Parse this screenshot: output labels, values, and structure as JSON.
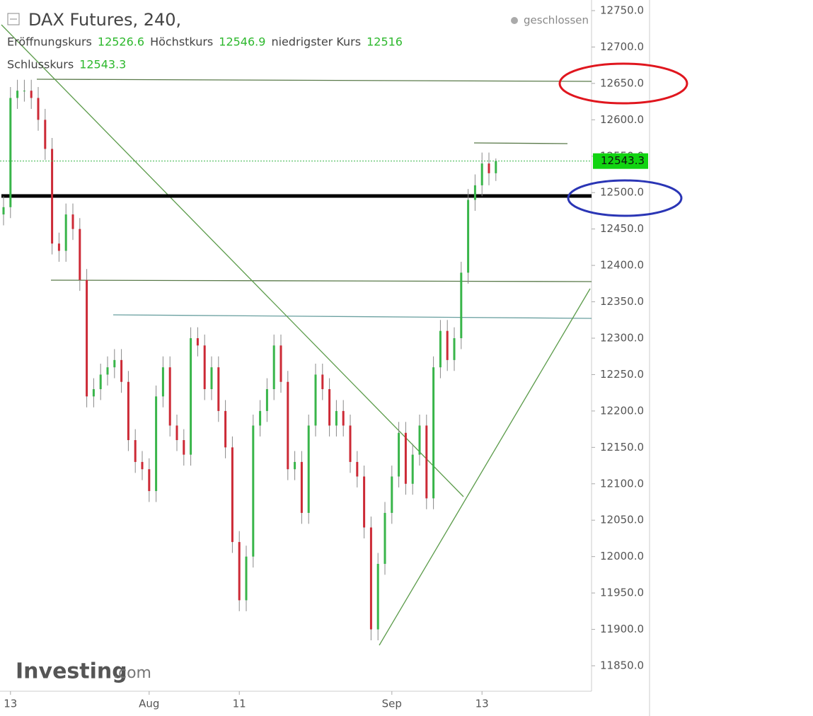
{
  "chart_data": {
    "type": "candlestick",
    "title": "DAX Futures, 240,",
    "status": "geschlossen",
    "ohlc_labels": [
      "Eröffnungskurs",
      "Höchstkurs",
      "niedrigster Kurs",
      "Schlusskurs"
    ],
    "logo": "Investing",
    "logo_suffix": ".com",
    "up_color": "#39b54a",
    "down_color": "#cc2a36",
    "categories": [
      null,
      "13",
      null,
      null,
      null,
      null,
      null,
      null,
      null,
      null,
      null,
      null,
      null,
      null,
      null,
      null,
      null,
      null,
      null,
      null,
      null,
      "Aug",
      null,
      null,
      null,
      null,
      null,
      null,
      null,
      null,
      null,
      null,
      null,
      null,
      "11",
      null,
      null,
      null,
      null,
      null,
      null,
      null,
      null,
      null,
      null,
      null,
      null,
      null,
      null,
      null,
      null,
      null,
      null,
      null,
      null,
      null,
      "Sep",
      null,
      null,
      null,
      null,
      null,
      null,
      null,
      null,
      null,
      null,
      null,
      null,
      "13",
      null,
      null
    ],
    "open": [
      12470,
      12480,
      12630,
      12640,
      12640,
      12630,
      12600,
      12560,
      12430,
      12420,
      12470,
      12450,
      12380,
      12220,
      12230,
      12250,
      12260,
      12270,
      12240,
      12160,
      12130,
      12120,
      12090,
      12220,
      12260,
      12180,
      12160,
      12140,
      12300,
      12290,
      12230,
      12260,
      12200,
      12150,
      12020,
      11940,
      12000,
      12180,
      12200,
      12230,
      12290,
      12240,
      12120,
      12130,
      12060,
      12180,
      12250,
      12230,
      12180,
      12200,
      12180,
      12130,
      12110,
      12040,
      11900,
      11990,
      12060,
      12110,
      12170,
      12100,
      12140,
      12180,
      12080,
      12260,
      12310,
      12270,
      12300,
      12390,
      12490,
      12510,
      12540,
      12526.6
    ],
    "high": [
      12495,
      12645,
      12655,
      12655,
      12655,
      12645,
      12615,
      12575,
      12445,
      12485,
      12485,
      12465,
      12395,
      12245,
      12265,
      12275,
      12285,
      12285,
      12255,
      12175,
      12145,
      12135,
      12235,
      12275,
      12275,
      12195,
      12175,
      12315,
      12315,
      12305,
      12275,
      12275,
      12215,
      12165,
      12035,
      12015,
      12195,
      12215,
      12245,
      12305,
      12305,
      12255,
      12145,
      12145,
      12195,
      12265,
      12265,
      12245,
      12215,
      12215,
      12195,
      12145,
      12125,
      12055,
      12005,
      12075,
      12125,
      12185,
      12185,
      12155,
      12195,
      12195,
      12275,
      12325,
      12325,
      12315,
      12405,
      12505,
      12525,
      12555,
      12555,
      12546.9
    ],
    "low": [
      12455,
      12465,
      12615,
      12625,
      12615,
      12585,
      12545,
      12415,
      12405,
      12405,
      12435,
      12365,
      12205,
      12205,
      12215,
      12235,
      12245,
      12225,
      12145,
      12115,
      12105,
      12075,
      12075,
      12205,
      12165,
      12145,
      12125,
      12125,
      12275,
      12215,
      12215,
      12185,
      12135,
      12005,
      11925,
      11925,
      11985,
      12165,
      12185,
      12215,
      12225,
      12105,
      12105,
      12045,
      12045,
      12165,
      12215,
      12165,
      12165,
      12165,
      12115,
      12095,
      12025,
      11885,
      11885,
      11975,
      12045,
      12095,
      12085,
      12085,
      12125,
      12065,
      12065,
      12245,
      12255,
      12255,
      12285,
      12375,
      12475,
      12495,
      12510,
      12516
    ],
    "close": [
      12480,
      12630,
      12640,
      12640,
      12630,
      12600,
      12560,
      12430,
      12420,
      12470,
      12450,
      12380,
      12220,
      12230,
      12250,
      12260,
      12270,
      12240,
      12160,
      12130,
      12120,
      12090,
      12220,
      12260,
      12180,
      12160,
      12140,
      12300,
      12290,
      12230,
      12260,
      12200,
      12150,
      12020,
      11940,
      12000,
      12180,
      12200,
      12230,
      12290,
      12240,
      12120,
      12130,
      12060,
      12180,
      12250,
      12230,
      12180,
      12200,
      12180,
      12130,
      12110,
      12040,
      11900,
      11990,
      12060,
      12110,
      12170,
      12100,
      12140,
      12180,
      12080,
      12260,
      12310,
      12270,
      12300,
      12390,
      12490,
      12510,
      12540,
      12526.6,
      12543.3
    ],
    "ylim": [
      11820,
      12765
    ],
    "yticks": [
      {
        "value": 11850,
        "label": "11850.0"
      },
      {
        "value": 11900,
        "label": "11900.0"
      },
      {
        "value": 11950,
        "label": "11950.0"
      },
      {
        "value": 12000,
        "label": "12000.0"
      },
      {
        "value": 12050,
        "label": "12050.0"
      },
      {
        "value": 12100,
        "label": "12100.0"
      },
      {
        "value": 12150,
        "label": "12150.0"
      },
      {
        "value": 12200,
        "label": "12200.0"
      },
      {
        "value": 12250,
        "label": "12250.0"
      },
      {
        "value": 12300,
        "label": "12300.0"
      },
      {
        "value": 12350,
        "label": "12350.0"
      },
      {
        "value": 12400,
        "label": "12400.0"
      },
      {
        "value": 12450,
        "label": "12450.0"
      },
      {
        "value": 12500,
        "label": "12500.0"
      },
      {
        "value": 12550,
        "label": "12550.0"
      },
      {
        "value": 12600,
        "label": "12600.0"
      },
      {
        "value": 12650,
        "label": "12650.0"
      },
      {
        "value": 12700,
        "label": "12700.0"
      },
      {
        "value": 12750,
        "label": "12750.0"
      }
    ]
  }
}
